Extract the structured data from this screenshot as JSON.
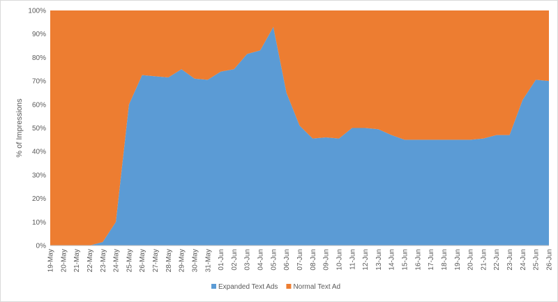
{
  "chart_data": {
    "type": "area",
    "stacked": "percent",
    "title": "",
    "xlabel": "",
    "ylabel": "% of Impressions",
    "ylim": [
      0,
      100
    ],
    "yticks": [
      "0%",
      "10%",
      "20%",
      "30%",
      "40%",
      "50%",
      "60%",
      "70%",
      "80%",
      "90%",
      "100%"
    ],
    "grid": false,
    "legend_position": "bottom",
    "categories": [
      "19-May",
      "20-May",
      "21-May",
      "22-May",
      "23-May",
      "24-May",
      "25-May",
      "26-May",
      "27-May",
      "28-May",
      "29-May",
      "30-May",
      "31-May",
      "01-Jun",
      "02-Jun",
      "03-Jun",
      "04-Jun",
      "05-Jun",
      "06-Jun",
      "07-Jun",
      "08-Jun",
      "09-Jun",
      "10-Jun",
      "11-Jun",
      "12-Jun",
      "13-Jun",
      "14-Jun",
      "15-Jun",
      "16-Jun",
      "17-Jun",
      "18-Jun",
      "19-Jun",
      "20-Jun",
      "21-Jun",
      "22-Jun",
      "23-Jun",
      "24-Jun",
      "25-Jun",
      "26-Jun"
    ],
    "series": [
      {
        "name": "Expanded Text Ads",
        "color": "#5b9bd5",
        "values": [
          0,
          0,
          0,
          0,
          1.5,
          10,
          60,
          72.5,
          72,
          71.5,
          75,
          71,
          70.5,
          74,
          75,
          81.5,
          83,
          93,
          65,
          51,
          45.5,
          46,
          45.5,
          50,
          50,
          49.5,
          47,
          45,
          45,
          45,
          45,
          45,
          45,
          45.5,
          47,
          47,
          62,
          70.5,
          70
        ]
      },
      {
        "name": "Normal Text Ad",
        "color": "#ed7d31",
        "values": [
          100,
          100,
          100,
          100,
          98.5,
          90,
          40,
          27.5,
          28,
          28.5,
          25,
          29,
          29.5,
          26,
          25,
          18.5,
          17,
          7,
          35,
          49,
          54.5,
          54,
          54.5,
          50,
          50,
          50.5,
          53,
          55,
          55,
          55,
          55,
          55,
          55,
          54.5,
          53,
          53,
          38,
          29.5,
          30
        ]
      }
    ]
  }
}
